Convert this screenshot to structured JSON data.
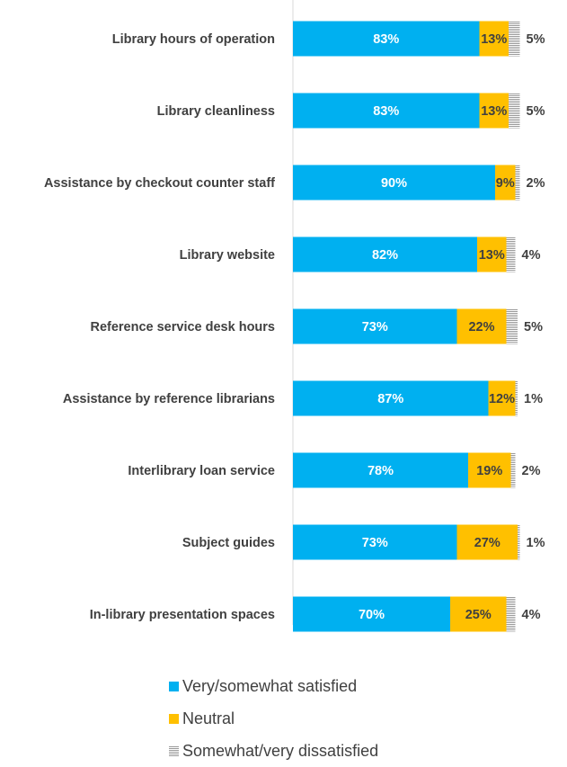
{
  "chart_data": {
    "type": "bar",
    "stacked": true,
    "orientation": "horizontal",
    "categories": [
      "Library hours of operation",
      "Library cleanliness",
      "Assistance by checkout counter staff",
      "Library website",
      "Reference service desk hours",
      "Assistance by reference librarians",
      "Interlibrary loan service",
      "Subject guides",
      "In-library presentation spaces"
    ],
    "series": [
      {
        "name": "Very/somewhat satisfied",
        "values": [
          83,
          83,
          90,
          82,
          73,
          87,
          78,
          73,
          70
        ],
        "color": "#00b0f0",
        "label_color": "#ffffff",
        "pattern": "solid"
      },
      {
        "name": "Neutral",
        "values": [
          13,
          13,
          9,
          13,
          22,
          12,
          19,
          27,
          25
        ],
        "color": "#ffc000",
        "label_color": "#404040",
        "pattern": "solid"
      },
      {
        "name": "Somewhat/very dissatisfied",
        "values": [
          5,
          5,
          2,
          4,
          5,
          1,
          2,
          1,
          4
        ],
        "color": "#9a9a9a",
        "label_color": "#404040",
        "pattern": "horizontal-lines"
      }
    ],
    "value_suffix": "%",
    "xlim": [
      0,
      100
    ],
    "legend_position": "bottom",
    "grid": false
  }
}
